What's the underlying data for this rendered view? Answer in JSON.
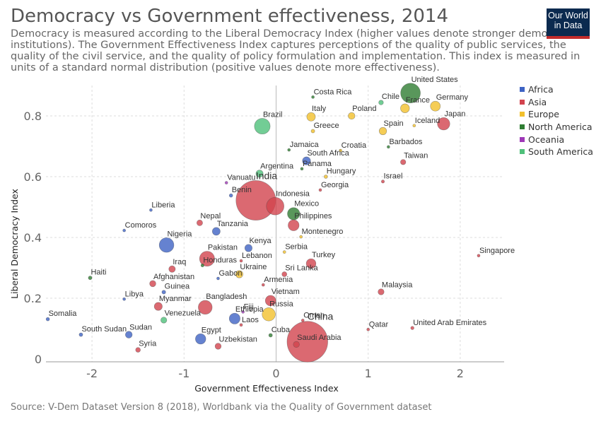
{
  "header": {
    "title": "Democracy vs Government effectiveness, 2014",
    "subtitle": "Democracy is measured according to the Liberal Democracy Index (higher values denote stronger democratic institutions). The Government Effectiveness Index captures perceptions of the quality of public services, the quality of the civil service, and the quality of policy formulation and implementation. This index is measured in units of a standard normal distribution (positive values denote more effectiveness)."
  },
  "logo": {
    "line1": "Our World",
    "line2": "in Data"
  },
  "footer": {
    "source": "Source: V-Dem Dataset Version 8 (2018), Worldbank via the Quality of Government dataset"
  },
  "colors": {
    "Africa": "#3e63c4",
    "Asia": "#d2434e",
    "Europe": "#f2c02c",
    "North America": "#2f7d32",
    "Oceania": "#9e38b7",
    "South America": "#4fc07a"
  },
  "chart_data": {
    "type": "scatter",
    "title": "Democracy vs Government effectiveness, 2014",
    "xlabel": "Government Effectiveness Index",
    "ylabel": "Liberal Democracy Index",
    "xlim": [
      -2.5,
      2.5
    ],
    "ylim": [
      0,
      0.9
    ],
    "xticks": [
      -2,
      -1,
      0,
      1,
      2
    ],
    "xtick_labels": [
      "-2",
      "-1",
      "0",
      "1",
      "2"
    ],
    "yticks": [
      0,
      0.2,
      0.4,
      0.6,
      0.8
    ],
    "ytick_labels": [
      "0",
      "0.2",
      "0.4",
      "0.6",
      "0.8"
    ],
    "grid": true,
    "legend_position": "right",
    "legend": [
      "Africa",
      "Asia",
      "Europe",
      "North America",
      "Oceania",
      "South America"
    ],
    "size_encoding": "population",
    "points": [
      {
        "label": "United States",
        "x": 1.46,
        "y": 0.875,
        "region": "North America",
        "size": 320
      },
      {
        "label": "Costa Rica",
        "x": 0.4,
        "y": 0.862,
        "region": "North America",
        "size": 5
      },
      {
        "label": "Chile",
        "x": 1.14,
        "y": 0.844,
        "region": "South America",
        "size": 18
      },
      {
        "label": "France",
        "x": 1.4,
        "y": 0.825,
        "region": "Europe",
        "size": 66
      },
      {
        "label": "Germany",
        "x": 1.73,
        "y": 0.832,
        "region": "Europe",
        "size": 81
      },
      {
        "label": "Italy",
        "x": 0.38,
        "y": 0.797,
        "region": "Europe",
        "size": 61
      },
      {
        "label": "Poland",
        "x": 0.82,
        "y": 0.8,
        "region": "Europe",
        "size": 38
      },
      {
        "label": "Japan",
        "x": 1.82,
        "y": 0.774,
        "region": "Asia",
        "size": 127
      },
      {
        "label": "Iceland",
        "x": 1.5,
        "y": 0.768,
        "region": "Europe",
        "size": 1
      },
      {
        "label": "Brazil",
        "x": -0.15,
        "y": 0.766,
        "region": "South America",
        "size": 204
      },
      {
        "label": "Spain",
        "x": 1.16,
        "y": 0.75,
        "region": "Europe",
        "size": 46
      },
      {
        "label": "Greece",
        "x": 0.4,
        "y": 0.75,
        "region": "Europe",
        "size": 11
      },
      {
        "label": "Barbados",
        "x": 1.22,
        "y": 0.698,
        "region": "North America",
        "size": 1
      },
      {
        "label": "Jamaica",
        "x": 0.14,
        "y": 0.688,
        "region": "North America",
        "size": 3
      },
      {
        "label": "Croatia",
        "x": 0.7,
        "y": 0.686,
        "region": "Europe",
        "size": 4
      },
      {
        "label": "South Africa",
        "x": 0.33,
        "y": 0.652,
        "region": "Africa",
        "size": 54
      },
      {
        "label": "Taiwan",
        "x": 1.38,
        "y": 0.648,
        "region": "Asia",
        "size": 23
      },
      {
        "label": "Panama",
        "x": 0.28,
        "y": 0.626,
        "region": "North America",
        "size": 4
      },
      {
        "label": "Argentina",
        "x": -0.18,
        "y": 0.61,
        "region": "South America",
        "size": 43
      },
      {
        "label": "Hungary",
        "x": 0.54,
        "y": 0.6,
        "region": "Europe",
        "size": 10
      },
      {
        "label": "Israel",
        "x": 1.16,
        "y": 0.584,
        "region": "Asia",
        "size": 8
      },
      {
        "label": "Vanuatu",
        "x": -0.54,
        "y": 0.58,
        "region": "Oceania",
        "size": 1
      },
      {
        "label": "India",
        "x": -0.22,
        "y": 0.522,
        "region": "Asia",
        "size": 1295
      },
      {
        "label": "Georgia",
        "x": 0.48,
        "y": 0.556,
        "region": "Asia",
        "size": 4
      },
      {
        "label": "Benin",
        "x": -0.49,
        "y": 0.538,
        "region": "Africa",
        "size": 10
      },
      {
        "label": "Indonesia",
        "x": -0.01,
        "y": 0.503,
        "region": "Asia",
        "size": 255
      },
      {
        "label": "Liberia",
        "x": -1.36,
        "y": 0.49,
        "region": "Africa",
        "size": 4
      },
      {
        "label": "Mexico",
        "x": 0.19,
        "y": 0.478,
        "region": "North America",
        "size": 125
      },
      {
        "label": "Nepal",
        "x": -0.83,
        "y": 0.448,
        "region": "Asia",
        "size": 28
      },
      {
        "label": "Philippines",
        "x": 0.19,
        "y": 0.44,
        "region": "Asia",
        "size": 99
      },
      {
        "label": "Tanzania",
        "x": -0.65,
        "y": 0.42,
        "region": "Africa",
        "size": 51
      },
      {
        "label": "Comoros",
        "x": -1.65,
        "y": 0.423,
        "region": "Africa",
        "size": 1
      },
      {
        "label": "Montenegro",
        "x": 0.27,
        "y": 0.402,
        "region": "Europe",
        "size": 1
      },
      {
        "label": "Nigeria",
        "x": -1.19,
        "y": 0.375,
        "region": "Africa",
        "size": 177
      },
      {
        "label": "Kenya",
        "x": -0.3,
        "y": 0.365,
        "region": "Africa",
        "size": 45
      },
      {
        "label": "Serbia",
        "x": 0.09,
        "y": 0.352,
        "region": "Europe",
        "size": 7
      },
      {
        "label": "Singapore",
        "x": 2.2,
        "y": 0.34,
        "region": "Asia",
        "size": 5
      },
      {
        "label": "Pakistan",
        "x": -0.75,
        "y": 0.33,
        "region": "Asia",
        "size": 185
      },
      {
        "label": "Lebanon",
        "x": -0.38,
        "y": 0.323,
        "region": "Asia",
        "size": 6
      },
      {
        "label": "Turkey",
        "x": 0.38,
        "y": 0.314,
        "region": "Asia",
        "size": 77
      },
      {
        "label": "Honduras",
        "x": -0.8,
        "y": 0.308,
        "region": "North America",
        "size": 8
      },
      {
        "label": "Iraq",
        "x": -1.13,
        "y": 0.296,
        "region": "Asia",
        "size": 35
      },
      {
        "label": "Sri Lanka",
        "x": 0.09,
        "y": 0.279,
        "region": "Asia",
        "size": 20
      },
      {
        "label": "Ukraine",
        "x": -0.4,
        "y": 0.279,
        "region": "Europe",
        "size": 45
      },
      {
        "label": "Haiti",
        "x": -2.02,
        "y": 0.267,
        "region": "North America",
        "size": 11
      },
      {
        "label": "Gabon",
        "x": -0.63,
        "y": 0.265,
        "region": "Africa",
        "size": 2
      },
      {
        "label": "Afghanistan",
        "x": -1.34,
        "y": 0.248,
        "region": "Asia",
        "size": 32
      },
      {
        "label": "Armenia",
        "x": -0.14,
        "y": 0.244,
        "region": "Asia",
        "size": 3
      },
      {
        "label": "Malaysia",
        "x": 1.14,
        "y": 0.221,
        "region": "Asia",
        "size": 30
      },
      {
        "label": "Guinea",
        "x": -1.22,
        "y": 0.22,
        "region": "Africa",
        "size": 12
      },
      {
        "label": "Vietnam",
        "x": -0.06,
        "y": 0.192,
        "region": "Asia",
        "size": 91
      },
      {
        "label": "Libya",
        "x": -1.65,
        "y": 0.197,
        "region": "Africa",
        "size": 6
      },
      {
        "label": "Myanmar",
        "x": -1.28,
        "y": 0.173,
        "region": "Asia",
        "size": 53
      },
      {
        "label": "Bangladesh",
        "x": -0.77,
        "y": 0.17,
        "region": "Asia",
        "size": 159
      },
      {
        "label": "Fiji",
        "x": -0.36,
        "y": 0.155,
        "region": "Oceania",
        "size": 1
      },
      {
        "label": "Russia",
        "x": -0.08,
        "y": 0.147,
        "region": "Europe",
        "size": 144
      },
      {
        "label": "Venezuela",
        "x": -1.22,
        "y": 0.128,
        "region": "South America",
        "size": 30
      },
      {
        "label": "Ethiopia",
        "x": -0.45,
        "y": 0.133,
        "region": "Africa",
        "size": 97
      },
      {
        "label": "Oman",
        "x": 0.29,
        "y": 0.127,
        "region": "Asia",
        "size": 4
      },
      {
        "label": "Somalia",
        "x": -2.48,
        "y": 0.131,
        "region": "Africa",
        "size": 10
      },
      {
        "label": "Laos",
        "x": -0.38,
        "y": 0.112,
        "region": "Asia",
        "size": 7
      },
      {
        "label": "China",
        "x": 0.34,
        "y": 0.057,
        "region": "Asia",
        "size": 1364
      },
      {
        "label": "Qatar",
        "x": 1.0,
        "y": 0.097,
        "region": "Asia",
        "size": 2
      },
      {
        "label": "United Arab Emirates",
        "x": 1.48,
        "y": 0.102,
        "region": "Asia",
        "size": 9
      },
      {
        "label": "South Sudan",
        "x": -2.12,
        "y": 0.08,
        "region": "Africa",
        "size": 11
      },
      {
        "label": "Sudan",
        "x": -1.6,
        "y": 0.08,
        "region": "Africa",
        "size": 39
      },
      {
        "label": "Egypt",
        "x": -0.82,
        "y": 0.066,
        "region": "Africa",
        "size": 89
      },
      {
        "label": "Cuba",
        "x": -0.06,
        "y": 0.078,
        "region": "North America",
        "size": 11
      },
      {
        "label": "Saudi Arabia",
        "x": 0.22,
        "y": 0.048,
        "region": "Asia",
        "size": 31
      },
      {
        "label": "Uzbekistan",
        "x": -0.63,
        "y": 0.042,
        "region": "Asia",
        "size": 31
      },
      {
        "label": "Syria",
        "x": -1.5,
        "y": 0.03,
        "region": "Asia",
        "size": 19
      }
    ]
  }
}
